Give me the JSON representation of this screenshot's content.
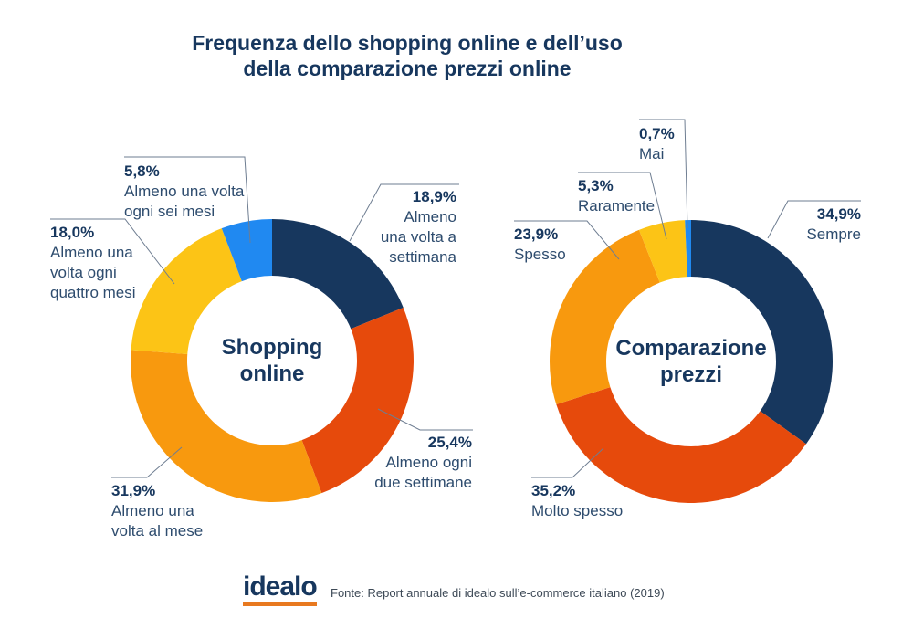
{
  "title": {
    "line1": "Frequenza dello shopping online e dell’uso",
    "line2": "della comparazione prezzi online"
  },
  "colors": {
    "navy": "#17375E",
    "red": "#E64A0C",
    "orange": "#F8990E",
    "yellow": "#FCC416",
    "blue": "#2089F1",
    "leader_line": "#6E7D91",
    "pct_text": "#17375E",
    "label_text": "#2E4C6E",
    "title_text": "#17375E",
    "logo_text_color": "#17375E",
    "logo_underline": "#E8791F",
    "source_text": "#3E4A57"
  },
  "chart_data": [
    {
      "type": "pie",
      "variant": "donut",
      "title": "Shopping online",
      "center_lines": [
        "Shopping",
        "online"
      ],
      "units": "%",
      "legend_position": "callout-labels",
      "segments": [
        {
          "label": "Almeno una volta a settimana",
          "label_lines": [
            "Almeno",
            "una volta a",
            "settimana"
          ],
          "value": 18.9,
          "display": "18,9%",
          "color": "navy"
        },
        {
          "label": "Almeno ogni due settimane",
          "label_lines": [
            "Almeno ogni",
            "due settimane"
          ],
          "value": 25.4,
          "display": "25,4%",
          "color": "red"
        },
        {
          "label": "Almeno una volta al mese",
          "label_lines": [
            "Almeno una",
            "volta al mese"
          ],
          "value": 31.9,
          "display": "31,9%",
          "color": "orange"
        },
        {
          "label": "Almeno una volta ogni quattro mesi",
          "label_lines": [
            "Almeno una",
            "volta ogni",
            "quattro mesi"
          ],
          "value": 18.0,
          "display": "18,0%",
          "color": "yellow"
        },
        {
          "label": "Almeno una volta ogni sei mesi",
          "label_lines": [
            "Almeno una volta",
            "ogni sei mesi"
          ],
          "value": 5.8,
          "display": "5,8%",
          "color": "blue"
        }
      ]
    },
    {
      "type": "pie",
      "variant": "donut",
      "title": "Comparazione prezzi",
      "center_lines": [
        "Comparazione",
        "prezzi"
      ],
      "units": "%",
      "legend_position": "callout-labels",
      "segments": [
        {
          "label": "Sempre",
          "label_lines": [
            "Sempre"
          ],
          "value": 34.9,
          "display": "34,9%",
          "color": "navy"
        },
        {
          "label": "Molto spesso",
          "label_lines": [
            "Molto spesso"
          ],
          "value": 35.2,
          "display": "35,2%",
          "color": "red"
        },
        {
          "label": "Spesso",
          "label_lines": [
            "Spesso"
          ],
          "value": 23.9,
          "display": "23,9%",
          "color": "orange"
        },
        {
          "label": "Raramente",
          "label_lines": [
            "Raramente"
          ],
          "value": 5.3,
          "display": "5,3%",
          "color": "yellow"
        },
        {
          "label": "Mai",
          "label_lines": [
            "Mai"
          ],
          "value": 0.7,
          "display": "0,7%",
          "color": "blue"
        }
      ]
    }
  ],
  "footer": {
    "logo_text": "idealo",
    "source": "Fonte: Report annuale di idealo sull’e-commerce italiano (2019)"
  }
}
